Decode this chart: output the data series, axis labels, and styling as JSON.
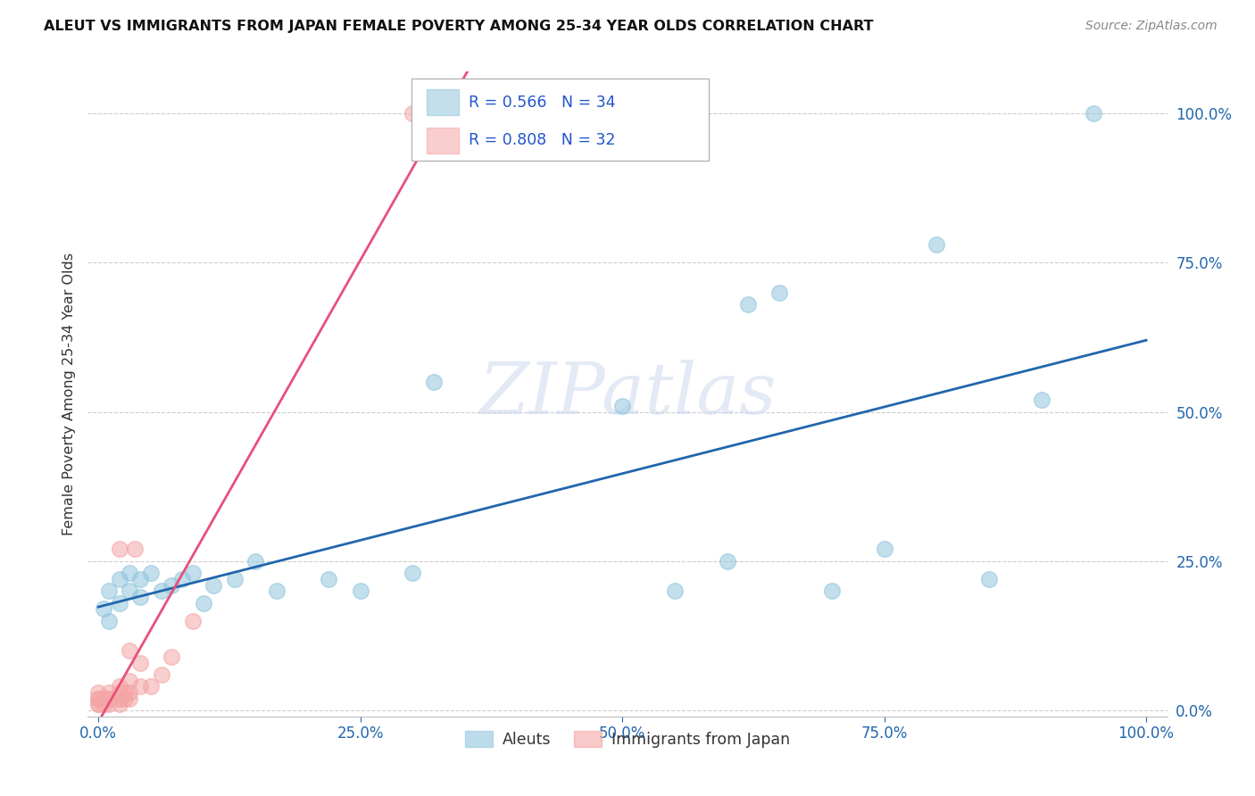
{
  "title": "ALEUT VS IMMIGRANTS FROM JAPAN FEMALE POVERTY AMONG 25-34 YEAR OLDS CORRELATION CHART",
  "source": "Source: ZipAtlas.com",
  "ylabel_label": "Female Poverty Among 25-34 Year Olds",
  "x_tick_labels": [
    "0.0%",
    "25.0%",
    "50.0%",
    "75.0%",
    "100.0%"
  ],
  "x_tick_vals": [
    0.0,
    0.25,
    0.5,
    0.75,
    1.0
  ],
  "y_tick_labels": [
    "0.0%",
    "25.0%",
    "50.0%",
    "75.0%",
    "100.0%"
  ],
  "y_tick_vals": [
    0.0,
    0.25,
    0.5,
    0.75,
    1.0
  ],
  "aleut_color": "#92c5de",
  "japan_color": "#f4a6a6",
  "aleut_line_color": "#2166ac",
  "japan_line_color": "#e8507a",
  "aleut_R": 0.566,
  "aleut_N": 34,
  "japan_R": 0.808,
  "japan_N": 32,
  "legend_color": "#2255cc",
  "background": "#ffffff",
  "aleut_x": [
    0.005,
    0.01,
    0.01,
    0.02,
    0.02,
    0.03,
    0.03,
    0.04,
    0.04,
    0.05,
    0.06,
    0.07,
    0.08,
    0.09,
    0.1,
    0.11,
    0.13,
    0.15,
    0.17,
    0.22,
    0.25,
    0.3,
    0.32,
    0.5,
    0.55,
    0.6,
    0.62,
    0.65,
    0.7,
    0.75,
    0.8,
    0.85,
    0.9,
    0.95
  ],
  "aleut_y": [
    0.17,
    0.2,
    0.15,
    0.22,
    0.18,
    0.23,
    0.2,
    0.22,
    0.19,
    0.23,
    0.2,
    0.21,
    0.22,
    0.23,
    0.18,
    0.21,
    0.22,
    0.25,
    0.2,
    0.22,
    0.2,
    0.23,
    0.55,
    0.51,
    0.2,
    0.25,
    0.68,
    0.7,
    0.2,
    0.27,
    0.78,
    0.22,
    0.52,
    1.0
  ],
  "japan_x": [
    0.0,
    0.0,
    0.0,
    0.0,
    0.0,
    0.005,
    0.005,
    0.01,
    0.01,
    0.01,
    0.01,
    0.02,
    0.02,
    0.02,
    0.02,
    0.02,
    0.02,
    0.025,
    0.025,
    0.03,
    0.03,
    0.03,
    0.03,
    0.035,
    0.04,
    0.04,
    0.05,
    0.06,
    0.07,
    0.09,
    0.3,
    0.33
  ],
  "japan_y": [
    0.01,
    0.01,
    0.02,
    0.02,
    0.03,
    0.01,
    0.02,
    0.01,
    0.02,
    0.02,
    0.03,
    0.01,
    0.02,
    0.02,
    0.03,
    0.04,
    0.27,
    0.02,
    0.03,
    0.02,
    0.03,
    0.05,
    0.1,
    0.27,
    0.04,
    0.08,
    0.04,
    0.06,
    0.09,
    0.15,
    1.0,
    1.0
  ]
}
